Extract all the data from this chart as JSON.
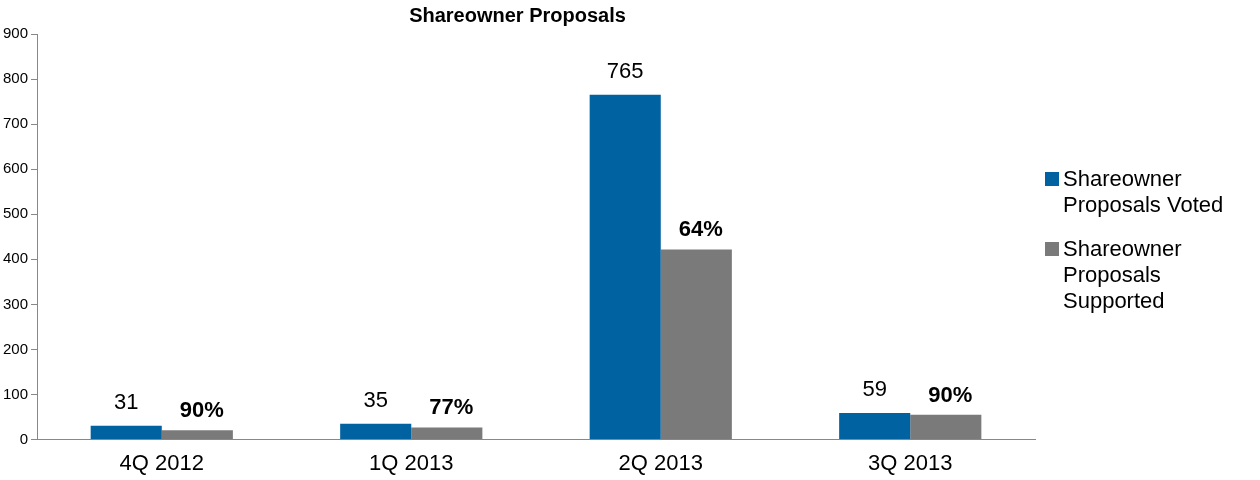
{
  "chart_data": {
    "type": "bar",
    "title": "Shareowner Proposals",
    "categories": [
      "4Q 2012",
      "1Q 2013",
      "2Q 2013",
      "3Q 2013"
    ],
    "series": [
      {
        "name": "Shareowner Proposals Voted",
        "color": "#0062a0",
        "values": [
          31,
          35,
          765,
          59
        ],
        "value_labels": [
          "31",
          "35",
          "765",
          "59"
        ]
      },
      {
        "name": "Shareowner Proposals Supported",
        "color": "#7a7a7a",
        "values": [
          21,
          27,
          422,
          55
        ]
      }
    ],
    "annotations": [
      {
        "text": "90%",
        "x": "4Q 2012",
        "y": 21
      },
      {
        "text": "77%",
        "x": "1Q 2013",
        "y": 27
      },
      {
        "text": "64%",
        "x": "2Q 2013",
        "y": 422
      },
      {
        "text": "90%",
        "x": "3Q 2013",
        "y": 55
      }
    ],
    "ylim": [
      0,
      900
    ],
    "yticks": [
      0,
      100,
      200,
      300,
      400,
      500,
      600,
      700,
      800,
      900
    ],
    "grid": false,
    "legend": "right"
  }
}
